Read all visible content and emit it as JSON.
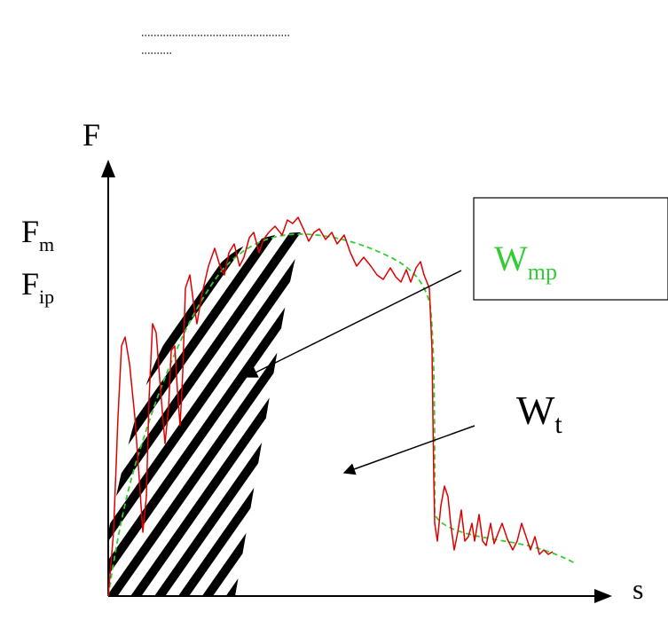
{
  "axes": {
    "y_label": "F",
    "x_label": "s"
  },
  "y_tick_labels": [
    {
      "main": "F",
      "sub": "m"
    },
    {
      "main": "F",
      "sub": "ip"
    }
  ],
  "labels": {
    "w_mp": {
      "main": "W",
      "sub": "mp",
      "color": "#33cc33"
    },
    "w_t": {
      "main": "W",
      "sub": "t",
      "color": "#000000"
    }
  },
  "colors": {
    "measured_curve": "#e00000",
    "fitted_curve": "#33cc33",
    "hatch": "#000000",
    "axis": "#000000"
  }
}
